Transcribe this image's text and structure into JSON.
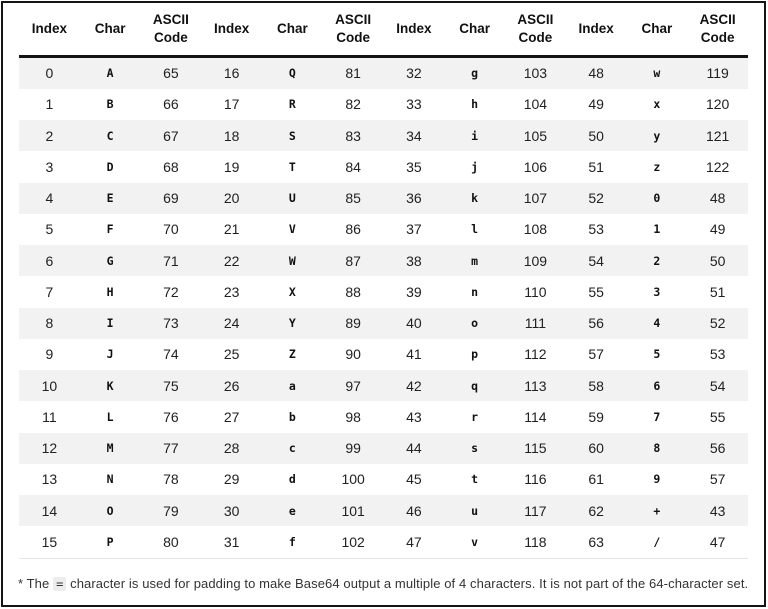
{
  "colors": {
    "row_stripe": "#f2f2f2",
    "header_rule": "#141414",
    "bottom_rule": "#e4e4e4",
    "frame_border": "#141414",
    "text": "#212121",
    "footnote_code_bg": "#ededed"
  },
  "table": {
    "header_labels": [
      "Index",
      "Char",
      "ASCII Code"
    ],
    "groups": [
      [
        {
          "index": 0,
          "char": "A",
          "code": 65
        },
        {
          "index": 1,
          "char": "B",
          "code": 66
        },
        {
          "index": 2,
          "char": "C",
          "code": 67
        },
        {
          "index": 3,
          "char": "D",
          "code": 68
        },
        {
          "index": 4,
          "char": "E",
          "code": 69
        },
        {
          "index": 5,
          "char": "F",
          "code": 70
        },
        {
          "index": 6,
          "char": "G",
          "code": 71
        },
        {
          "index": 7,
          "char": "H",
          "code": 72
        },
        {
          "index": 8,
          "char": "I",
          "code": 73
        },
        {
          "index": 9,
          "char": "J",
          "code": 74
        },
        {
          "index": 10,
          "char": "K",
          "code": 75
        },
        {
          "index": 11,
          "char": "L",
          "code": 76
        },
        {
          "index": 12,
          "char": "M",
          "code": 77
        },
        {
          "index": 13,
          "char": "N",
          "code": 78
        },
        {
          "index": 14,
          "char": "O",
          "code": 79
        },
        {
          "index": 15,
          "char": "P",
          "code": 80
        }
      ],
      [
        {
          "index": 16,
          "char": "Q",
          "code": 81
        },
        {
          "index": 17,
          "char": "R",
          "code": 82
        },
        {
          "index": 18,
          "char": "S",
          "code": 83
        },
        {
          "index": 19,
          "char": "T",
          "code": 84
        },
        {
          "index": 20,
          "char": "U",
          "code": 85
        },
        {
          "index": 21,
          "char": "V",
          "code": 86
        },
        {
          "index": 22,
          "char": "W",
          "code": 87
        },
        {
          "index": 23,
          "char": "X",
          "code": 88
        },
        {
          "index": 24,
          "char": "Y",
          "code": 89
        },
        {
          "index": 25,
          "char": "Z",
          "code": 90
        },
        {
          "index": 26,
          "char": "a",
          "code": 97
        },
        {
          "index": 27,
          "char": "b",
          "code": 98
        },
        {
          "index": 28,
          "char": "c",
          "code": 99
        },
        {
          "index": 29,
          "char": "d",
          "code": 100
        },
        {
          "index": 30,
          "char": "e",
          "code": 101
        },
        {
          "index": 31,
          "char": "f",
          "code": 102
        }
      ],
      [
        {
          "index": 32,
          "char": "g",
          "code": 103
        },
        {
          "index": 33,
          "char": "h",
          "code": 104
        },
        {
          "index": 34,
          "char": "i",
          "code": 105
        },
        {
          "index": 35,
          "char": "j",
          "code": 106
        },
        {
          "index": 36,
          "char": "k",
          "code": 107
        },
        {
          "index": 37,
          "char": "l",
          "code": 108
        },
        {
          "index": 38,
          "char": "m",
          "code": 109
        },
        {
          "index": 39,
          "char": "n",
          "code": 110
        },
        {
          "index": 40,
          "char": "o",
          "code": 111
        },
        {
          "index": 41,
          "char": "p",
          "code": 112
        },
        {
          "index": 42,
          "char": "q",
          "code": 113
        },
        {
          "index": 43,
          "char": "r",
          "code": 114
        },
        {
          "index": 44,
          "char": "s",
          "code": 115
        },
        {
          "index": 45,
          "char": "t",
          "code": 116
        },
        {
          "index": 46,
          "char": "u",
          "code": 117
        },
        {
          "index": 47,
          "char": "v",
          "code": 118
        }
      ],
      [
        {
          "index": 48,
          "char": "w",
          "code": 119
        },
        {
          "index": 49,
          "char": "x",
          "code": 120
        },
        {
          "index": 50,
          "char": "y",
          "code": 121
        },
        {
          "index": 51,
          "char": "z",
          "code": 122
        },
        {
          "index": 52,
          "char": "0",
          "code": 48
        },
        {
          "index": 53,
          "char": "1",
          "code": 49
        },
        {
          "index": 54,
          "char": "2",
          "code": 50
        },
        {
          "index": 55,
          "char": "3",
          "code": 51
        },
        {
          "index": 56,
          "char": "4",
          "code": 52
        },
        {
          "index": 57,
          "char": "5",
          "code": 53
        },
        {
          "index": 58,
          "char": "6",
          "code": 54
        },
        {
          "index": 59,
          "char": "7",
          "code": 55
        },
        {
          "index": 60,
          "char": "8",
          "code": 56
        },
        {
          "index": 61,
          "char": "9",
          "code": 57
        },
        {
          "index": 62,
          "char": "+",
          "code": 43
        },
        {
          "index": 63,
          "char": "/",
          "code": 47
        }
      ]
    ]
  },
  "footnote": {
    "prefix": "* The ",
    "code": "=",
    "suffix": " character is used for padding to make Base64 output a multiple of 4 characters. It is not part of the 64-character set."
  }
}
